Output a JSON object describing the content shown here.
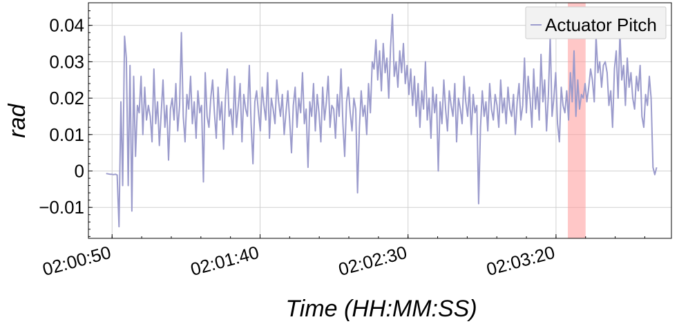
{
  "chart_data": {
    "type": "line",
    "xlabel": "Time (HH:MM:SS)",
    "ylabel": "rad",
    "x_ticks": [
      "02:00:50",
      "02:01:40",
      "02:02:30",
      "02:03:20"
    ],
    "y_ticks": [
      "−0.01",
      "0",
      "0.01",
      "0.02",
      "0.03",
      "0.04"
    ],
    "y_tick_values": [
      -0.01,
      0,
      0.01,
      0.02,
      0.03,
      0.04
    ],
    "xlim": [
      "02:00:42",
      "02:03:59"
    ],
    "ylim": [
      -0.0185,
      0.0462
    ],
    "grid": true,
    "legend_position": "top-right",
    "highlight_band": {
      "x_start": "02:03:24",
      "x_end": "02:03:30",
      "color": "#ff9999"
    },
    "series": [
      {
        "name": "Actuator Pitch",
        "color": "#9b9bcc",
        "x_start": "02:00:48",
        "x_end": "02:03:54",
        "values": [
          -0.0007,
          -0.0008,
          -0.0009,
          -0.0009,
          -0.001,
          -0.0009,
          -0.0011,
          -0.0153,
          0.019,
          -0.004,
          0.037,
          0.031,
          -0.004,
          0.029,
          -0.011,
          0.026,
          0.004,
          0.018,
          0.016,
          0.026,
          0.01,
          0.023,
          0.014,
          0.018,
          0.015,
          0.008,
          0.028,
          0.013,
          0.019,
          0.007,
          0.016,
          0.025,
          0.012,
          0.018,
          0.003,
          0.017,
          0.02,
          0.014,
          0.024,
          0.011,
          0.018,
          0.038,
          0.015,
          0.008,
          0.021,
          0.017,
          0.026,
          0.013,
          0.019,
          0.009,
          0.022,
          0.016,
          0.018,
          -0.003,
          0.027,
          0.015,
          0.012,
          0.02,
          0.025,
          0.016,
          0.009,
          0.023,
          0.014,
          0.019,
          0.006,
          0.02,
          0.028,
          0.015,
          0.017,
          0.01,
          0.026,
          0.012,
          0.018,
          0.024,
          0.008,
          0.021,
          0.017,
          0.015,
          0.029,
          0.013,
          0.002,
          0.019,
          0.022,
          0.016,
          0.011,
          0.023,
          0.018,
          0.014,
          0.027,
          0.009,
          0.02,
          0.017,
          0.013,
          0.025,
          0.019,
          0.015,
          0.021,
          0.01,
          0.016,
          0.022,
          0.014,
          0.005,
          0.018,
          0.023,
          0.012,
          0.02,
          0.016,
          0.027,
          0.013,
          0.017,
          0.001,
          0.019,
          0.015,
          0.024,
          0.011,
          0.021,
          0.016,
          0.008,
          0.023,
          0.014,
          0.019,
          0.026,
          0.012,
          0.018,
          0.017,
          0.009,
          0.021,
          0.015,
          0.028,
          0.013,
          0.004,
          0.019,
          0.023,
          0.016,
          0.011,
          0.02,
          0.017,
          -0.006,
          0.012,
          0.022,
          0.015,
          0.018,
          0.01,
          0.024,
          0.016,
          0.03,
          0.028,
          0.036,
          0.025,
          0.033,
          0.022,
          0.035,
          0.027,
          0.031,
          0.02,
          0.034,
          0.043,
          0.026,
          0.03,
          0.023,
          0.033,
          0.027,
          0.035,
          0.024,
          0.029,
          0.021,
          0.028,
          0.018,
          0.026,
          0.015,
          0.024,
          0.012,
          0.022,
          0.017,
          0.03,
          0.014,
          0.02,
          0.009,
          0.023,
          0.016,
          0.021,
          0.0,
          0.019,
          0.013,
          0.025,
          0.017,
          0.011,
          0.022,
          0.018,
          0.015,
          0.024,
          0.008,
          0.02,
          0.017,
          0.013,
          0.026,
          0.019,
          0.015,
          0.023,
          0.01,
          0.021,
          0.016,
          0.018,
          -0.009,
          0.012,
          0.022,
          0.015,
          0.019,
          0.011,
          0.024,
          0.017,
          0.014,
          0.021,
          0.018,
          0.012,
          0.025,
          0.016,
          0.02,
          0.013,
          0.023,
          0.017,
          0.015,
          0.021,
          0.01,
          0.019,
          0.024,
          0.014,
          0.018,
          0.031,
          0.016,
          0.026,
          0.02,
          0.012,
          0.028,
          0.017,
          0.023,
          0.014,
          0.032,
          0.019,
          0.025,
          0.011,
          0.021,
          0.037,
          0.015,
          0.02,
          0.027,
          0.013,
          0.008,
          0.023,
          0.018,
          0.016,
          0.022,
          0.014,
          0.027,
          0.019,
          0.033,
          0.015,
          0.025,
          0.017,
          0.021,
          0.02,
          0.024,
          0.019,
          0.023,
          0.028,
          0.025,
          0.019,
          0.037,
          0.027,
          0.03,
          0.023,
          0.029,
          0.03,
          0.027,
          0.018,
          0.022,
          0.012,
          0.028,
          0.033,
          0.02,
          0.038,
          0.025,
          0.029,
          0.018,
          0.031,
          0.023,
          0.027,
          0.02,
          0.017,
          0.026,
          0.022,
          0.029,
          0.015,
          0.012,
          0.021,
          0.018,
          0.026,
          0.02,
          0.001,
          -0.001,
          0.001
        ]
      }
    ]
  }
}
